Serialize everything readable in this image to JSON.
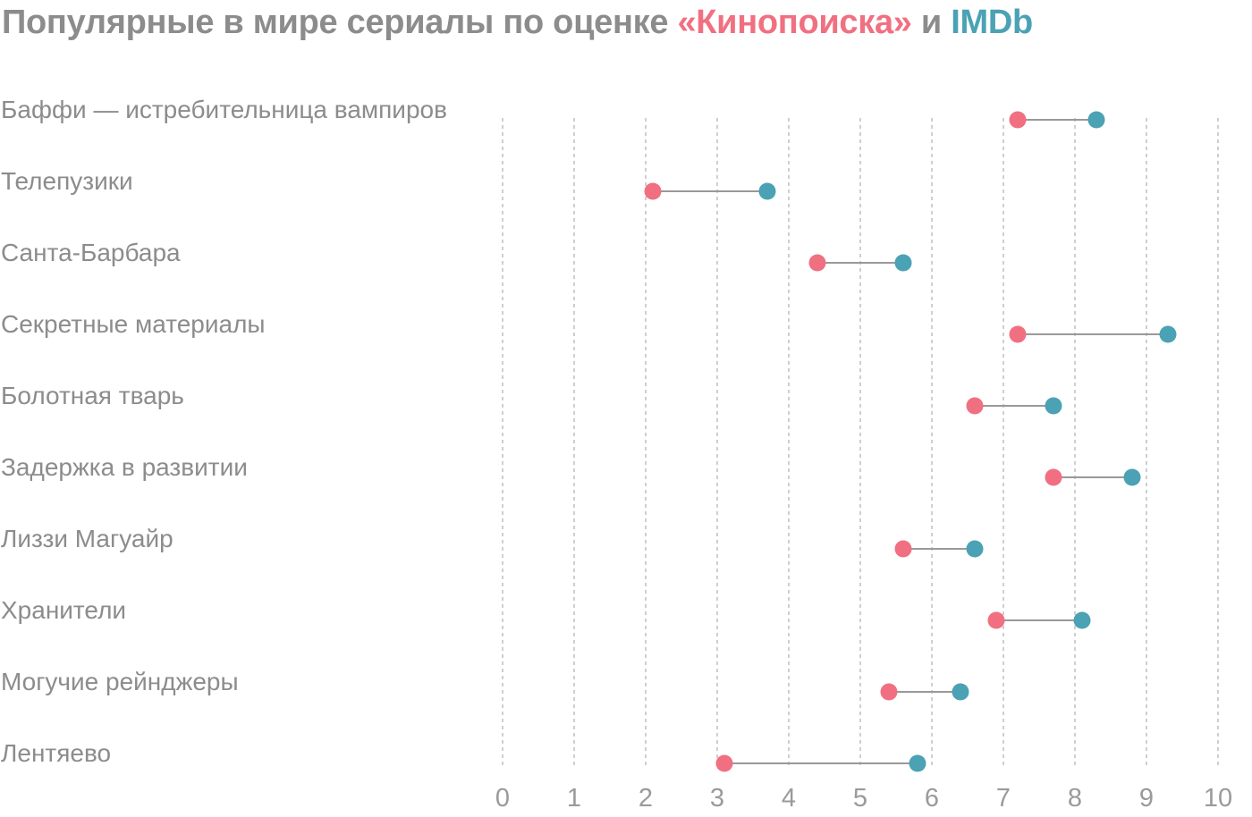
{
  "title": {
    "prefix": "Популярные в мире сериалы по оценке ",
    "kinopoisk": "«Кинопоиска»",
    "joiner": " и ",
    "imdb": "IMDb"
  },
  "colors": {
    "kinopoisk": "#f07081",
    "imdb": "#4aa2b4",
    "connector": "#999999",
    "grid": "#b5b5b5",
    "text": "#8c8c8c"
  },
  "chart_data": {
    "type": "dumbbell",
    "title": "Популярные в мире сериалы по оценке «Кинопоиска» и IMDb",
    "xlim": [
      0,
      10
    ],
    "xticks": [
      "0",
      "1",
      "2",
      "3",
      "4",
      "5",
      "6",
      "7",
      "8",
      "9",
      "10"
    ],
    "grid": "vertical dashed",
    "categories": [
      "Баффи — истребительница вампиров",
      "Телепузики",
      "Санта-Барбара",
      "Секретные материалы",
      "Болотная тварь",
      "Задержка в развитии",
      "Лиззи Магуайр",
      "Хранители",
      "Могучие рейнджеры",
      "Лентяево"
    ],
    "series": [
      {
        "name": "«Кинопоиска»",
        "color": "#f07081",
        "values": [
          7.2,
          2.1,
          4.4,
          7.2,
          6.6,
          7.7,
          5.6,
          6.9,
          5.4,
          3.1
        ]
      },
      {
        "name": "IMDb",
        "color": "#4aa2b4",
        "values": [
          8.3,
          3.7,
          5.6,
          9.3,
          7.7,
          8.8,
          6.6,
          8.1,
          6.4,
          5.8
        ]
      }
    ]
  }
}
